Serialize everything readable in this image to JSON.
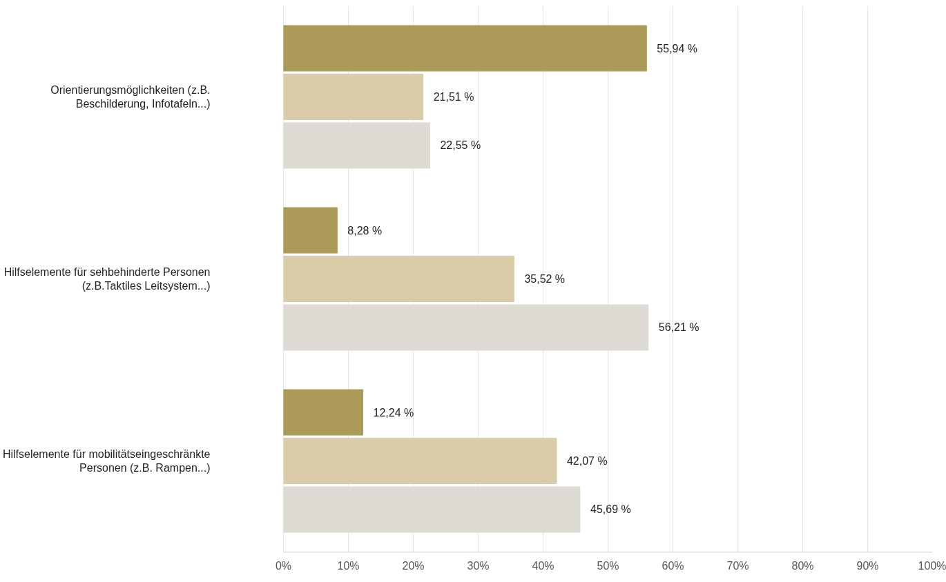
{
  "chart_data": {
    "type": "bar",
    "orientation": "horizontal",
    "categories": [
      "Orientierungsmöglichkeiten (z.B. Beschilderung, Infotafeln...)",
      "Hilfselemente für sehbehinderte Personen (z.B.Taktiles Leitsystem...)",
      "Hilfselemente für mobilitätseingeschränkte Personen (z.B. Rampen...)"
    ],
    "series": [
      {
        "color": "#ab9a58",
        "values": [
          55.94,
          8.28,
          12.24
        ],
        "value_labels": [
          "55,94 %",
          "8,28 %",
          "12,24 %"
        ]
      },
      {
        "color": "#d9cca7",
        "values": [
          21.51,
          35.52,
          42.07
        ],
        "value_labels": [
          "21,51 %",
          "35,52 %",
          "42,07 %"
        ]
      },
      {
        "color": "#dedbd4",
        "values": [
          22.55,
          56.21,
          45.69
        ],
        "value_labels": [
          "22,55 %",
          "56,21 %",
          "45,69 %"
        ]
      }
    ],
    "xlim": [
      0,
      100
    ],
    "xticks": [
      {
        "value": 0,
        "label": "0%"
      },
      {
        "value": 10,
        "label": "10%"
      },
      {
        "value": 20,
        "label": "20%"
      },
      {
        "value": 30,
        "label": "30%"
      },
      {
        "value": 40,
        "label": "40%"
      },
      {
        "value": 50,
        "label": "50%"
      },
      {
        "value": 60,
        "label": "60%"
      },
      {
        "value": 70,
        "label": "70%"
      },
      {
        "value": 80,
        "label": "80%"
      },
      {
        "value": 90,
        "label": "90%"
      },
      {
        "value": 100,
        "label": "100%"
      }
    ],
    "grid": "x"
  }
}
